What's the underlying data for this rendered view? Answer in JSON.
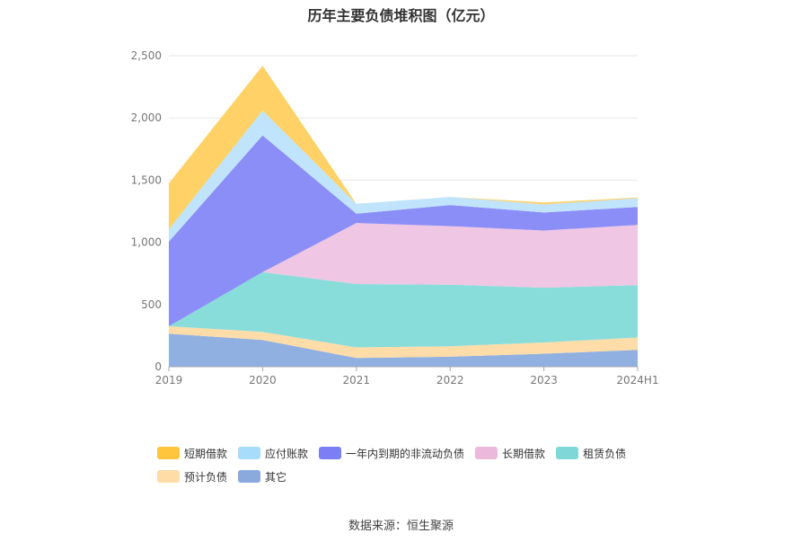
{
  "title": "历年主要负债堆积图（亿元）",
  "source": "数据来源：恒生聚源",
  "chart_data": {
    "type": "area",
    "stacked": true,
    "title": "历年主要负债堆积图（亿元）",
    "categories": [
      "2019",
      "2020",
      "2021",
      "2022",
      "2023",
      "2024H1"
    ],
    "ylim": [
      0,
      2500
    ],
    "yticks": [
      "0",
      "500",
      "1,000",
      "1,500",
      "2,000",
      "2,500"
    ],
    "grid": true,
    "legend_position": "bottom",
    "series": [
      {
        "name": "其它",
        "color": "#8fb0e0",
        "values": [
          265,
          215,
          70,
          80,
          105,
          135
        ]
      },
      {
        "name": "预计负债",
        "color": "#ffdca8",
        "values": [
          60,
          65,
          85,
          85,
          90,
          100
        ]
      },
      {
        "name": "租赁负债",
        "color": "#88dddb",
        "values": [
          0,
          480,
          510,
          495,
          440,
          420
        ]
      },
      {
        "name": "长期借款",
        "color": "#efc6e3",
        "values": [
          0,
          0,
          490,
          470,
          460,
          485
        ]
      },
      {
        "name": "一年内到期的非流动负债",
        "color": "#8c8ef7",
        "values": [
          680,
          1100,
          75,
          170,
          145,
          145
        ]
      },
      {
        "name": "应付账款",
        "color": "#bfe4fb",
        "values": [
          100,
          200,
          80,
          65,
          65,
          70
        ]
      },
      {
        "name": "短期借款",
        "color": "#ffd166",
        "values": [
          370,
          360,
          0,
          0,
          15,
          5
        ]
      }
    ]
  },
  "legend": {
    "items": [
      {
        "name": "短期借款",
        "color": "#ffc53d"
      },
      {
        "name": "应付账款",
        "color": "#a8dcfb"
      },
      {
        "name": "一年内到期的非流动负债",
        "color": "#7b7ef5"
      },
      {
        "name": "长期借款",
        "color": "#ebb9dc"
      },
      {
        "name": "租赁负债",
        "color": "#7fd8d7"
      },
      {
        "name": "预计负债",
        "color": "#ffdba6"
      },
      {
        "name": "其它",
        "color": "#8aa9dc"
      }
    ]
  }
}
